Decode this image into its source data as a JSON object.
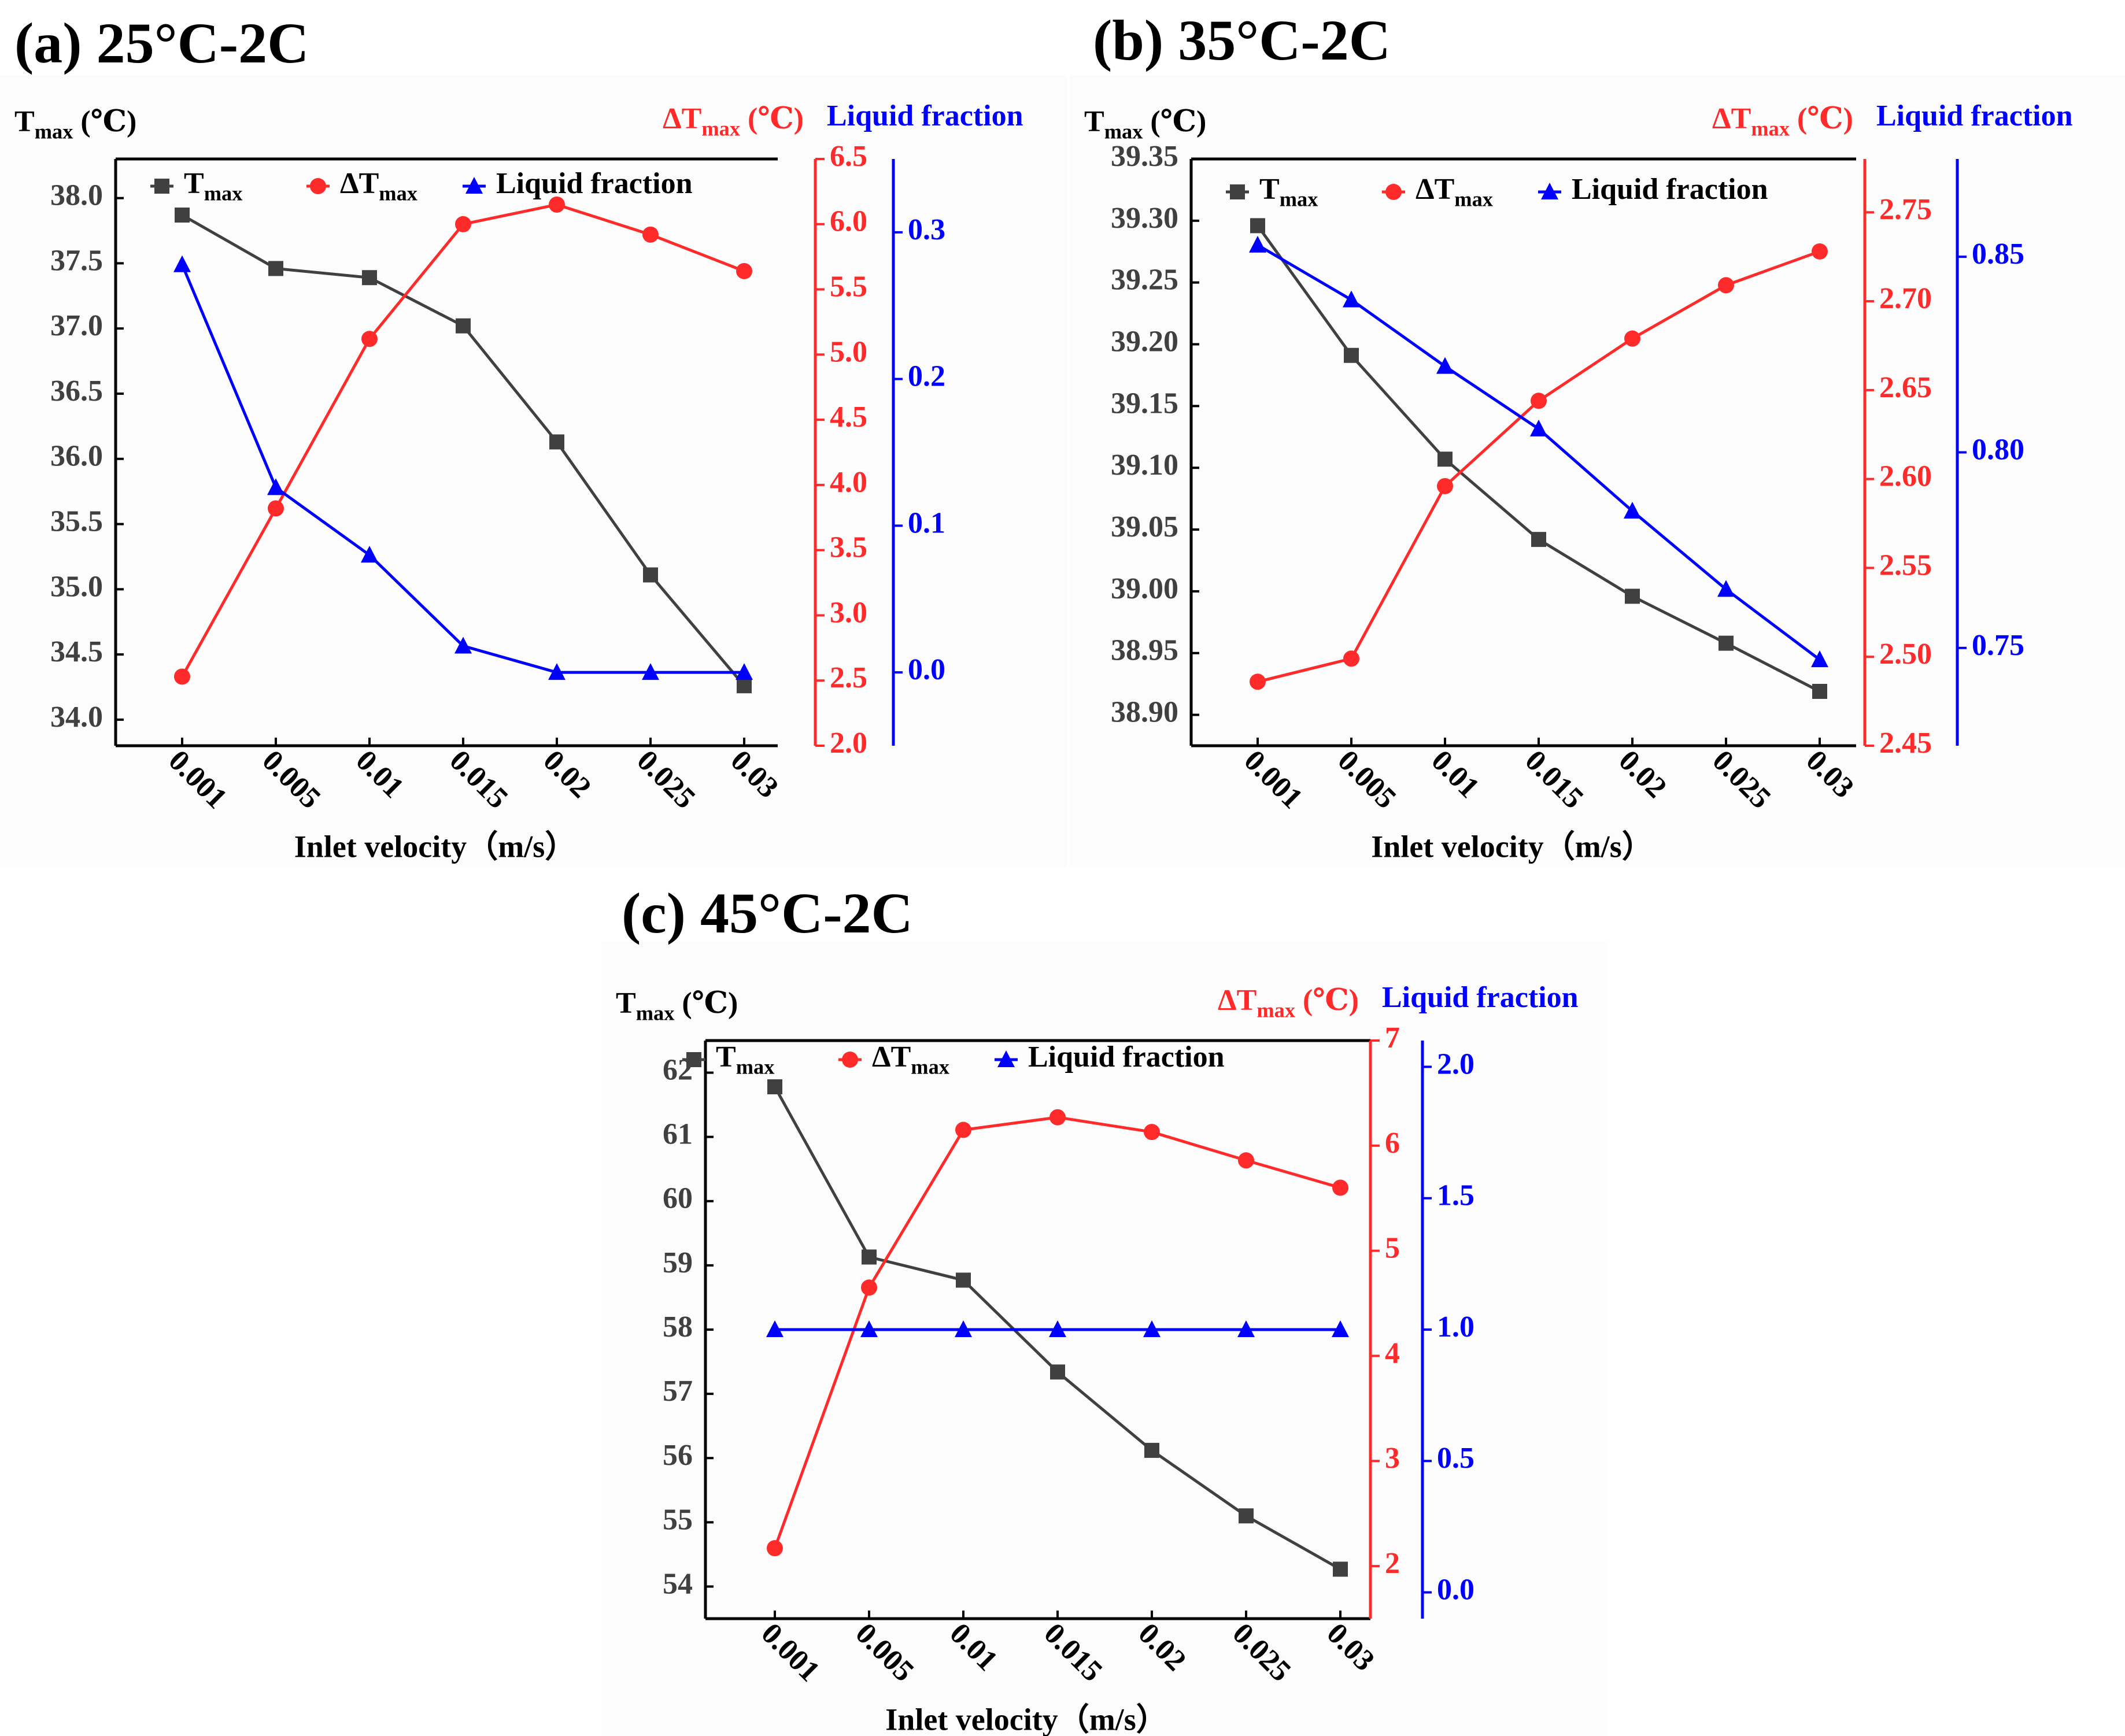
{
  "colors": {
    "tmax": "#404040",
    "dtmax": "#ff2a2a",
    "lf": "#0000ff",
    "axis": "#000000",
    "panel_bg": "#fcfcfc"
  },
  "legend": {
    "tmax_main": "T",
    "tmax_sub": "max",
    "dtmax_main": "ΔT",
    "dtmax_sub": "max",
    "lf": "Liquid fraction"
  },
  "chart_data": [
    {
      "type": "line",
      "title": "(a) 25°C-2C",
      "xlabel": "Inlet velocity（m/s）",
      "categories": [
        "0.001",
        "0.005",
        "0.01",
        "0.015",
        "0.02",
        "0.025",
        "0.03"
      ],
      "y_left": {
        "label_main": "T",
        "label_sub": "max",
        "label_unit": " (℃)",
        "ylim": [
          33.8,
          38.3
        ],
        "ticks": [
          "34.0",
          "34.5",
          "35.0",
          "35.5",
          "36.0",
          "36.5",
          "37.0",
          "37.5",
          "38.0"
        ]
      },
      "y_right1": {
        "label_main": "ΔT",
        "label_sub": "max",
        "label_unit": " (℃)",
        "ylim": [
          2.0,
          6.5
        ],
        "ticks": [
          "2.0",
          "2.5",
          "3.0",
          "3.5",
          "4.0",
          "4.5",
          "5.0",
          "5.5",
          "6.0",
          "6.5"
        ]
      },
      "y_right2": {
        "label": "Liquid fraction",
        "ylim": [
          -0.05,
          0.35
        ],
        "ticks": [
          "0.0",
          "0.1",
          "0.2",
          "0.3"
        ]
      },
      "series": [
        {
          "name": "Tmax",
          "axis": "left",
          "marker": "square",
          "values": [
            37.87,
            37.46,
            37.39,
            37.02,
            36.13,
            35.11,
            34.26
          ]
        },
        {
          "name": "ΔTmax",
          "axis": "right1",
          "marker": "circle",
          "values": [
            2.53,
            3.82,
            5.12,
            6.0,
            6.15,
            5.92,
            5.64
          ]
        },
        {
          "name": "Liquid fraction",
          "axis": "right2",
          "marker": "triangle",
          "values": [
            0.278,
            0.126,
            0.08,
            0.018,
            0.0,
            0.0,
            0.0
          ]
        }
      ]
    },
    {
      "type": "line",
      "title": "(b) 35°C-2C",
      "xlabel": "Inlet velocity（m/s）",
      "categories": [
        "0.001",
        "0.005",
        "0.01",
        "0.015",
        "0.02",
        "0.025",
        "0.03"
      ],
      "y_left": {
        "label_main": "T",
        "label_sub": "max",
        "label_unit": " (℃)",
        "ylim": [
          38.875,
          39.35
        ],
        "ticks": [
          "38.90",
          "38.95",
          "39.00",
          "39.05",
          "39.10",
          "39.15",
          "39.20",
          "39.25",
          "39.30",
          "39.35"
        ]
      },
      "y_right1": {
        "label_main": "ΔT",
        "label_sub": "max",
        "label_unit": " (℃)",
        "ylim": [
          2.45,
          2.78
        ],
        "ticks": [
          "2.45",
          "2.50",
          "2.55",
          "2.60",
          "2.65",
          "2.70",
          "2.75"
        ]
      },
      "y_right2": {
        "label": "Liquid fraction",
        "ylim": [
          0.725,
          0.875
        ],
        "ticks": [
          "0.75",
          "0.80",
          "0.85"
        ]
      },
      "series": [
        {
          "name": "Tmax",
          "axis": "left",
          "marker": "square",
          "values": [
            39.296,
            39.191,
            39.107,
            39.042,
            38.996,
            38.958,
            38.919
          ]
        },
        {
          "name": "ΔTmax",
          "axis": "right1",
          "marker": "circle",
          "values": [
            2.486,
            2.499,
            2.596,
            2.644,
            2.679,
            2.709,
            2.728
          ]
        },
        {
          "name": "Liquid fraction",
          "axis": "right2",
          "marker": "triangle",
          "values": [
            0.853,
            0.839,
            0.822,
            0.806,
            0.785,
            0.765,
            0.747
          ]
        }
      ]
    },
    {
      "type": "line",
      "title": "(c) 45°C-2C",
      "xlabel": "Inlet velocity（m/s）",
      "categories": [
        "0.001",
        "0.005",
        "0.01",
        "0.015",
        "0.02",
        "0.025",
        "0.03"
      ],
      "y_left": {
        "label_main": "T",
        "label_sub": "max",
        "label_unit": " (℃)",
        "ylim": [
          53.5,
          62.5
        ],
        "ticks": [
          "54",
          "55",
          "56",
          "57",
          "58",
          "59",
          "60",
          "61",
          "62"
        ]
      },
      "y_right1": {
        "label_main": "ΔT",
        "label_sub": "max",
        "label_unit": " (℃)",
        "ylim": [
          1.5,
          7.0
        ],
        "ticks": [
          "2",
          "3",
          "4",
          "5",
          "6",
          "7"
        ]
      },
      "y_right2": {
        "label": "Liquid fraction",
        "ylim": [
          -0.1,
          2.1
        ],
        "ticks": [
          "0.0",
          "0.5",
          "1.0",
          "1.5",
          "2.0"
        ]
      },
      "series": [
        {
          "name": "Tmax",
          "axis": "left",
          "marker": "square",
          "values": [
            61.78,
            59.13,
            58.77,
            57.34,
            56.12,
            55.1,
            54.27
          ]
        },
        {
          "name": "ΔTmax",
          "axis": "right1",
          "marker": "circle",
          "values": [
            2.17,
            4.65,
            6.15,
            6.27,
            6.13,
            5.86,
            5.6
          ]
        },
        {
          "name": "Liquid fraction",
          "axis": "right2",
          "marker": "triangle",
          "values": [
            1.0,
            1.0,
            1.0,
            1.0,
            1.0,
            1.0,
            1.0
          ]
        }
      ]
    }
  ]
}
